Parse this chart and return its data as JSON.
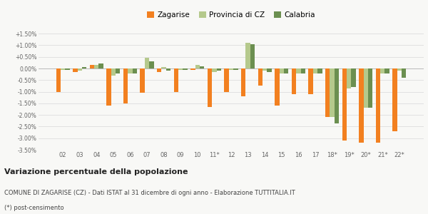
{
  "categories": [
    "02",
    "03",
    "04",
    "05",
    "06",
    "07",
    "08",
    "09",
    "10",
    "11*",
    "12",
    "13",
    "14",
    "15",
    "16",
    "17",
    "18*",
    "19*",
    "20*",
    "21*",
    "22*"
  ],
  "zagarise": [
    -1.0,
    -0.15,
    0.15,
    -1.6,
    -1.5,
    -1.05,
    -0.15,
    -1.0,
    -0.05,
    -1.65,
    -1.0,
    -1.2,
    -0.75,
    -1.6,
    -1.1,
    -1.1,
    -2.1,
    -3.1,
    -3.2,
    -3.2,
    -2.7
  ],
  "provincia": [
    -0.05,
    -0.1,
    0.15,
    -0.3,
    -0.2,
    0.45,
    0.05,
    -0.05,
    0.15,
    -0.15,
    -0.05,
    1.1,
    -0.1,
    -0.2,
    -0.2,
    -0.2,
    -2.1,
    -0.85,
    -1.7,
    -0.2,
    -0.1
  ],
  "calabria": [
    -0.05,
    0.05,
    0.2,
    -0.2,
    -0.2,
    0.3,
    -0.1,
    -0.05,
    0.1,
    -0.1,
    -0.05,
    1.05,
    -0.15,
    -0.2,
    -0.2,
    -0.2,
    -2.35,
    -0.8,
    -1.7,
    -0.2,
    -0.4
  ],
  "color_zagarise": "#f28020",
  "color_provincia": "#b5c98c",
  "color_calabria": "#6b8f50",
  "ylim_min": -3.5,
  "ylim_max": 1.75,
  "yticks": [
    -3.5,
    -3.0,
    -2.5,
    -2.0,
    -1.5,
    -1.0,
    -0.5,
    0.0,
    0.5,
    1.0,
    1.5
  ],
  "ytick_labels": [
    "-3.50%",
    "-3.00%",
    "-2.50%",
    "-2.00%",
    "-1.50%",
    "-1.00%",
    "-0.50%",
    "0.00%",
    "+0.50%",
    "+1.00%",
    "+1.50%"
  ],
  "title_bold": "Variazione percentuale della popolazione",
  "subtitle": "COMUNE DI ZAGARISE (CZ) - Dati ISTAT al 31 dicembre di ogni anno - Elaborazione TUTTITALIA.IT",
  "footnote": "(*) post-censimento",
  "legend_labels": [
    "Zagarise",
    "Provincia di CZ",
    "Calabria"
  ],
  "bg_color": "#f8f8f6",
  "grid_color": "#dddddd"
}
